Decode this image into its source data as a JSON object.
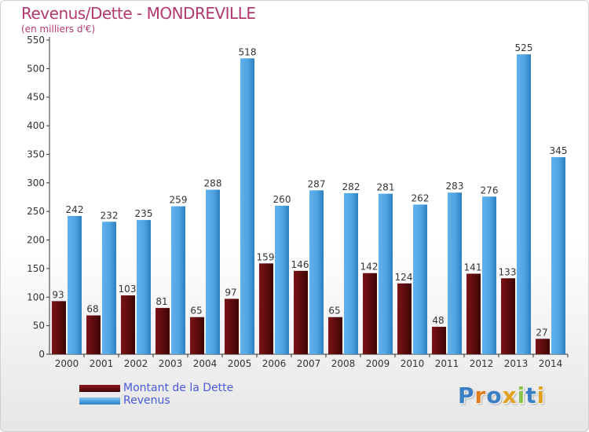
{
  "header": {
    "title": "Revenus/Dette - MONDREVILLE",
    "subtitle": "(en milliers d'€)"
  },
  "chart_data": {
    "type": "bar",
    "categories": [
      "2000",
      "2001",
      "2002",
      "2003",
      "2004",
      "2005",
      "2006",
      "2007",
      "2008",
      "2009",
      "2010",
      "2011",
      "2012",
      "2013",
      "2014"
    ],
    "series": [
      {
        "name": "Montant de la Dette",
        "color": "#6b0f12",
        "values": [
          93,
          68,
          103,
          81,
          65,
          97,
          159,
          146,
          65,
          142,
          124,
          48,
          141,
          133,
          27
        ]
      },
      {
        "name": "Revenus",
        "color": "#4fa3e0",
        "values": [
          242,
          232,
          235,
          259,
          288,
          518,
          260,
          287,
          282,
          281,
          262,
          283,
          276,
          525,
          345
        ]
      }
    ],
    "title": "Revenus/Dette - MONDREVILLE",
    "ylabel": "(en milliers d'€)",
    "ylim": [
      0,
      550
    ],
    "yticks": [
      0,
      50,
      100,
      150,
      200,
      250,
      300,
      350,
      400,
      450,
      500,
      550
    ],
    "grid": false,
    "legend": "bottom-left"
  },
  "legend": {
    "items": [
      {
        "label": "Montant de la Dette",
        "color": "#6b0f12"
      },
      {
        "label": "Revenus",
        "color": "#4fa3e0"
      }
    ]
  },
  "logo": {
    "letters": [
      {
        "ch": "P",
        "color": "#3a7fc4"
      },
      {
        "ch": "r",
        "color": "#e07b1e"
      },
      {
        "ch": "o",
        "color": "#3a7fc4"
      },
      {
        "ch": "x",
        "color": "#e0a21e"
      },
      {
        "ch": "i",
        "color": "#8bc34a"
      },
      {
        "ch": "t",
        "color": "#3a7fc4"
      },
      {
        "ch": "i",
        "color": "#e0a21e"
      }
    ]
  }
}
